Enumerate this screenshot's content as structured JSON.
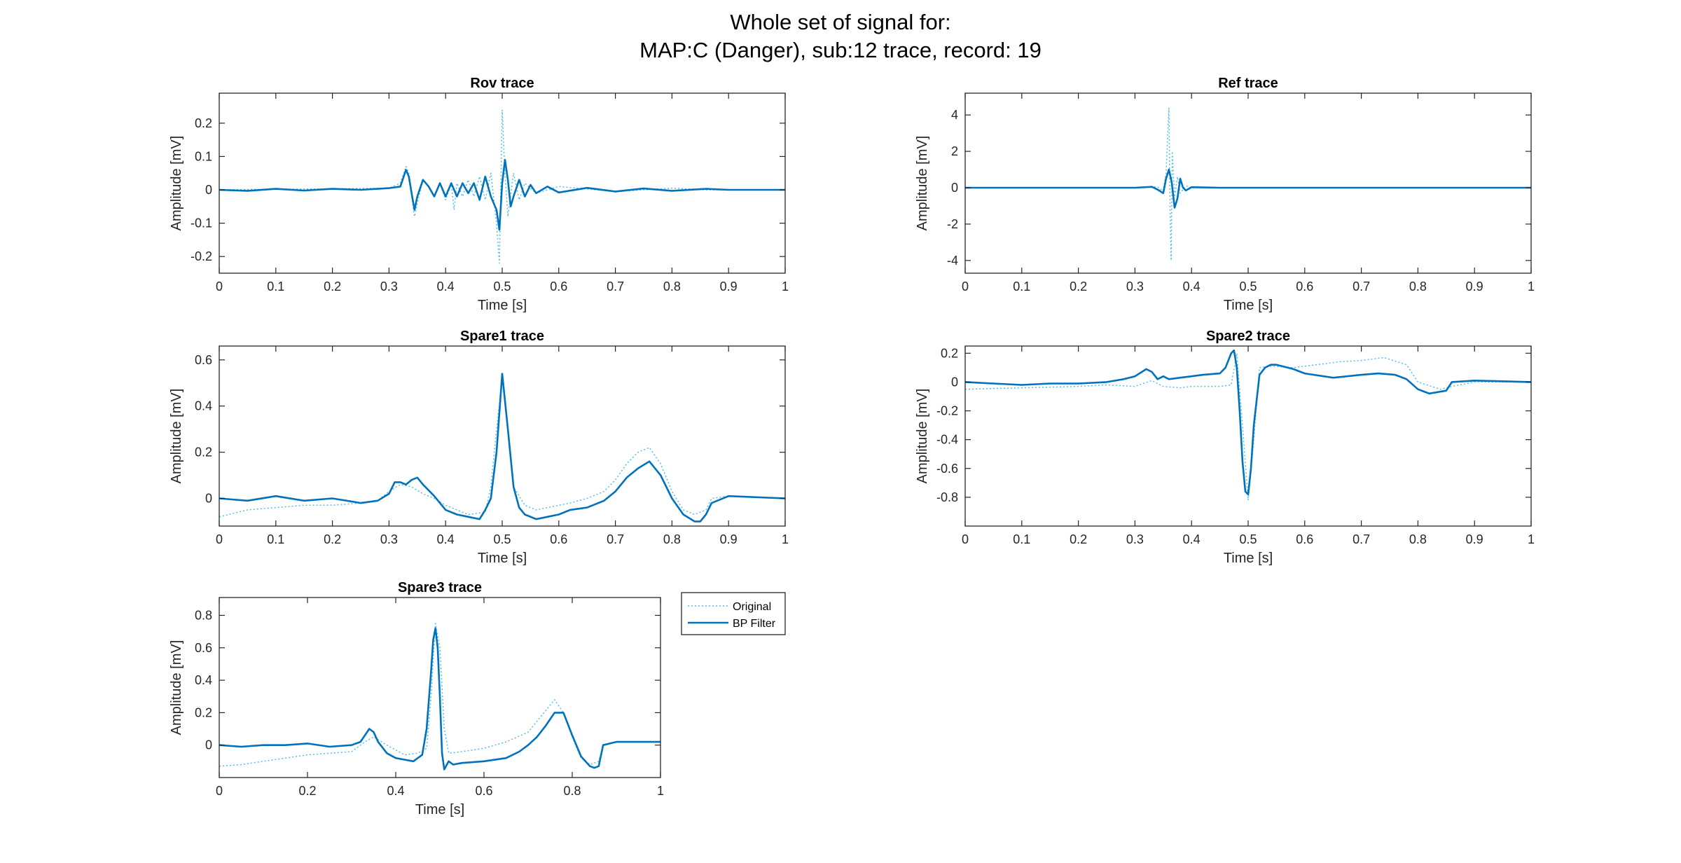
{
  "figure": {
    "title_line1": "Whole set of signal for:",
    "title_line2": "MAP:C (Danger), sub:12 trace, record: 19",
    "colors": {
      "original": "#4DBEEE",
      "filtered": "#0072BD",
      "axis": "#262626",
      "background": "#ffffff"
    }
  },
  "legend": {
    "entries": [
      {
        "label": "Original",
        "style": "dotted",
        "color": "#4DBEEE"
      },
      {
        "label": "BP Filter",
        "style": "solid",
        "color": "#0072BD"
      }
    ]
  },
  "chart_data": [
    {
      "type": "line",
      "title": "Rov trace",
      "xlabel": "Time [s]",
      "ylabel": "Amplitude [mV]",
      "xlim": [
        0,
        1
      ],
      "ylim": [
        -0.25,
        0.29
      ],
      "xticks": [
        0,
        0.1,
        0.2,
        0.3,
        0.4,
        0.5,
        0.6,
        0.7,
        0.8,
        0.9,
        1
      ],
      "xtick_labels": [
        "0",
        "0.1",
        "0.2",
        "0.3",
        "0.4",
        "0.5",
        "0.6",
        "0.7",
        "0.8",
        "0.9",
        "1"
      ],
      "yticks": [
        -0.2,
        -0.1,
        0,
        0.1,
        0.2
      ],
      "ytick_labels": [
        "-0.2",
        "-0.1",
        "0",
        "0.1",
        "0.2"
      ],
      "series": [
        {
          "name": "Original",
          "x": [
            0,
            0.1,
            0.2,
            0.3,
            0.32,
            0.33,
            0.335,
            0.34,
            0.345,
            0.35,
            0.36,
            0.37,
            0.38,
            0.39,
            0.4,
            0.41,
            0.415,
            0.42,
            0.43,
            0.44,
            0.45,
            0.46,
            0.47,
            0.48,
            0.49,
            0.495,
            0.5,
            0.505,
            0.51,
            0.52,
            0.53,
            0.54,
            0.56,
            0.6,
            0.7,
            0.8,
            0.86,
            1
          ],
          "y": [
            0,
            0.002,
            0.003,
            0.005,
            0.02,
            0.07,
            0.05,
            -0.02,
            -0.08,
            -0.04,
            0.03,
            0.01,
            -0.02,
            0.02,
            -0.03,
            0.02,
            -0.06,
            0.02,
            -0.02,
            0.03,
            -0.02,
            0.04,
            -0.03,
            0.05,
            -0.1,
            -0.22,
            0.24,
            0.05,
            -0.08,
            0.05,
            -0.03,
            0.02,
            -0.01,
            0.01,
            -0.005,
            0.005,
            0,
            0
          ]
        },
        {
          "name": "BP Filter",
          "x": [
            0,
            0.05,
            0.1,
            0.15,
            0.2,
            0.25,
            0.3,
            0.32,
            0.33,
            0.335,
            0.34,
            0.345,
            0.35,
            0.36,
            0.37,
            0.38,
            0.39,
            0.4,
            0.41,
            0.42,
            0.43,
            0.44,
            0.45,
            0.46,
            0.47,
            0.48,
            0.49,
            0.495,
            0.5,
            0.505,
            0.51,
            0.515,
            0.52,
            0.53,
            0.54,
            0.55,
            0.56,
            0.58,
            0.6,
            0.65,
            0.7,
            0.75,
            0.8,
            0.86,
            0.9,
            1
          ],
          "y": [
            0,
            -0.003,
            0.003,
            -0.002,
            0.003,
            0,
            0.005,
            0.01,
            0.06,
            0.04,
            -0.01,
            -0.06,
            -0.02,
            0.03,
            0.01,
            -0.02,
            0.02,
            -0.02,
            0.02,
            -0.02,
            0.02,
            -0.01,
            0.02,
            -0.03,
            0.04,
            -0.02,
            -0.06,
            -0.12,
            0.02,
            0.09,
            0.03,
            -0.05,
            -0.02,
            0.03,
            -0.02,
            0.015,
            -0.01,
            0.01,
            -0.008,
            0.006,
            -0.005,
            0.004,
            -0.003,
            0.003,
            0,
            0
          ]
        }
      ]
    },
    {
      "type": "line",
      "title": "Ref trace",
      "xlabel": "Time [s]",
      "ylabel": "Amplitude [mV]",
      "xlim": [
        0,
        1
      ],
      "ylim": [
        -4.7,
        5.2
      ],
      "xticks": [
        0,
        0.1,
        0.2,
        0.3,
        0.4,
        0.5,
        0.6,
        0.7,
        0.8,
        0.9,
        1
      ],
      "xtick_labels": [
        "0",
        "0.1",
        "0.2",
        "0.3",
        "0.4",
        "0.5",
        "0.6",
        "0.7",
        "0.8",
        "0.9",
        "1"
      ],
      "yticks": [
        -4,
        -2,
        0,
        2,
        4
      ],
      "ytick_labels": [
        "-4",
        "-2",
        "0",
        "2",
        "4"
      ],
      "series": [
        {
          "name": "Original",
          "x": [
            0,
            0.3,
            0.34,
            0.35,
            0.355,
            0.36,
            0.362,
            0.364,
            0.366,
            0.37,
            0.375,
            0.38,
            0.39,
            0.4,
            0.5,
            1
          ],
          "y": [
            0,
            0,
            0.05,
            -0.2,
            0.8,
            4.4,
            -1.0,
            -4.0,
            2.0,
            -0.5,
            0.6,
            -0.3,
            0.1,
            0,
            0,
            0
          ]
        },
        {
          "name": "BP Filter",
          "x": [
            0,
            0.3,
            0.33,
            0.34,
            0.35,
            0.355,
            0.36,
            0.365,
            0.37,
            0.375,
            0.38,
            0.385,
            0.39,
            0.4,
            0.45,
            0.5,
            1
          ],
          "y": [
            0,
            0,
            0.05,
            -0.1,
            -0.3,
            0.5,
            1.0,
            0.3,
            -1.1,
            -0.6,
            0.5,
            0.0,
            -0.15,
            0.03,
            0,
            0,
            0
          ]
        }
      ]
    },
    {
      "type": "line",
      "title": "Spare1 trace",
      "xlabel": "Time [s]",
      "ylabel": "Amplitude [mV]",
      "xlim": [
        0,
        1
      ],
      "ylim": [
        -0.12,
        0.66
      ],
      "xticks": [
        0,
        0.1,
        0.2,
        0.3,
        0.4,
        0.5,
        0.6,
        0.7,
        0.8,
        0.9,
        1
      ],
      "xtick_labels": [
        "0",
        "0.1",
        "0.2",
        "0.3",
        "0.4",
        "0.5",
        "0.6",
        "0.7",
        "0.8",
        "0.9",
        "1"
      ],
      "yticks": [
        0,
        0.2,
        0.4,
        0.6
      ],
      "ytick_labels": [
        "0",
        "0.2",
        "0.4",
        "0.6"
      ],
      "series": [
        {
          "name": "Original",
          "x": [
            0,
            0.05,
            0.1,
            0.15,
            0.2,
            0.25,
            0.28,
            0.3,
            0.32,
            0.34,
            0.36,
            0.38,
            0.4,
            0.44,
            0.47,
            0.48,
            0.49,
            0.5,
            0.51,
            0.52,
            0.54,
            0.56,
            0.58,
            0.6,
            0.62,
            0.65,
            0.68,
            0.7,
            0.72,
            0.74,
            0.76,
            0.78,
            0.8,
            0.82,
            0.84,
            0.86,
            0.87,
            0.9,
            1
          ],
          "y": [
            -0.08,
            -0.05,
            -0.04,
            -0.03,
            -0.03,
            -0.02,
            -0.01,
            0.03,
            0.06,
            0.05,
            0.02,
            0,
            -0.03,
            -0.07,
            -0.06,
            0.05,
            0.3,
            0.52,
            0.3,
            0.05,
            -0.03,
            -0.05,
            -0.04,
            -0.03,
            -0.02,
            0,
            0.03,
            0.08,
            0.15,
            0.2,
            0.22,
            0.15,
            0.03,
            -0.05,
            -0.07,
            -0.05,
            0,
            0.01,
            0
          ]
        },
        {
          "name": "BP Filter",
          "x": [
            0,
            0.05,
            0.1,
            0.15,
            0.2,
            0.25,
            0.28,
            0.3,
            0.31,
            0.32,
            0.33,
            0.34,
            0.35,
            0.36,
            0.38,
            0.4,
            0.42,
            0.44,
            0.46,
            0.47,
            0.48,
            0.49,
            0.5,
            0.51,
            0.52,
            0.53,
            0.54,
            0.56,
            0.58,
            0.6,
            0.62,
            0.65,
            0.68,
            0.7,
            0.72,
            0.74,
            0.76,
            0.78,
            0.8,
            0.82,
            0.84,
            0.85,
            0.86,
            0.87,
            0.9,
            1
          ],
          "y": [
            0,
            -0.01,
            0.01,
            -0.01,
            0,
            -0.02,
            -0.01,
            0.02,
            0.07,
            0.07,
            0.06,
            0.08,
            0.09,
            0.06,
            0.01,
            -0.05,
            -0.07,
            -0.08,
            -0.09,
            -0.05,
            0,
            0.2,
            0.54,
            0.3,
            0.05,
            -0.04,
            -0.07,
            -0.09,
            -0.08,
            -0.07,
            -0.05,
            -0.04,
            -0.01,
            0.03,
            0.09,
            0.13,
            0.16,
            0.1,
            0,
            -0.07,
            -0.1,
            -0.1,
            -0.07,
            -0.02,
            0.01,
            0
          ]
        }
      ]
    },
    {
      "type": "line",
      "title": "Spare2 trace",
      "xlabel": "Time [s]",
      "ylabel": "Amplitude [mV]",
      "xlim": [
        0,
        1
      ],
      "ylim": [
        -1.0,
        0.25
      ],
      "xticks": [
        0,
        0.1,
        0.2,
        0.3,
        0.4,
        0.5,
        0.6,
        0.7,
        0.8,
        0.9,
        1
      ],
      "xtick_labels": [
        "0",
        "0.1",
        "0.2",
        "0.3",
        "0.4",
        "0.5",
        "0.6",
        "0.7",
        "0.8",
        "0.9",
        "1"
      ],
      "yticks": [
        -0.8,
        -0.6,
        -0.4,
        -0.2,
        0,
        0.2
      ],
      "ytick_labels": [
        "-0.8",
        "-0.6",
        "-0.4",
        "-0.2",
        "0",
        "0.2"
      ],
      "series": [
        {
          "name": "Original",
          "x": [
            0,
            0.1,
            0.2,
            0.25,
            0.3,
            0.33,
            0.35,
            0.38,
            0.4,
            0.45,
            0.47,
            0.48,
            0.49,
            0.5,
            0.51,
            0.52,
            0.54,
            0.58,
            0.62,
            0.66,
            0.7,
            0.74,
            0.78,
            0.8,
            0.84,
            0.86,
            0.9,
            1
          ],
          "y": [
            -0.05,
            -0.04,
            -0.03,
            -0.02,
            -0.03,
            0.01,
            -0.03,
            -0.04,
            -0.03,
            -0.03,
            -0.02,
            0.2,
            -0.3,
            -0.82,
            -0.4,
            0.1,
            0.11,
            0.1,
            0.12,
            0.14,
            0.15,
            0.17,
            0.12,
            0,
            -0.05,
            -0.03,
            0,
            0
          ]
        },
        {
          "name": "BP Filter",
          "x": [
            0,
            0.05,
            0.1,
            0.15,
            0.2,
            0.25,
            0.28,
            0.3,
            0.32,
            0.33,
            0.34,
            0.35,
            0.36,
            0.38,
            0.4,
            0.42,
            0.45,
            0.46,
            0.47,
            0.475,
            0.48,
            0.485,
            0.49,
            0.495,
            0.5,
            0.505,
            0.51,
            0.52,
            0.53,
            0.54,
            0.55,
            0.56,
            0.58,
            0.6,
            0.65,
            0.7,
            0.73,
            0.76,
            0.78,
            0.8,
            0.82,
            0.85,
            0.86,
            0.9,
            1
          ],
          "y": [
            0,
            -0.01,
            -0.02,
            -0.01,
            -0.01,
            0,
            0.02,
            0.04,
            0.09,
            0.07,
            0.02,
            0.04,
            0.02,
            0.03,
            0.04,
            0.05,
            0.06,
            0.1,
            0.2,
            0.22,
            0.1,
            -0.2,
            -0.55,
            -0.76,
            -0.78,
            -0.6,
            -0.3,
            0.05,
            0.1,
            0.12,
            0.12,
            0.11,
            0.09,
            0.06,
            0.03,
            0.05,
            0.06,
            0.05,
            0.02,
            -0.05,
            -0.08,
            -0.06,
            0,
            0.01,
            0
          ]
        }
      ]
    },
    {
      "type": "line",
      "title": "Spare3 trace",
      "xlabel": "Time [s]",
      "ylabel": "Amplitude [mV]",
      "xlim": [
        0,
        1
      ],
      "ylim": [
        -0.2,
        0.91
      ],
      "xticks": [
        0,
        0.2,
        0.4,
        0.6,
        0.8,
        1
      ],
      "xtick_labels": [
        "0",
        "0.2",
        "0.4",
        "0.6",
        "0.8",
        "1"
      ],
      "yticks": [
        0,
        0.2,
        0.4,
        0.6,
        0.8
      ],
      "ytick_labels": [
        "0",
        "0.2",
        "0.4",
        "0.6",
        "0.8"
      ],
      "series": [
        {
          "name": "Original",
          "x": [
            0,
            0.05,
            0.1,
            0.15,
            0.2,
            0.25,
            0.3,
            0.33,
            0.35,
            0.38,
            0.42,
            0.45,
            0.47,
            0.48,
            0.49,
            0.5,
            0.51,
            0.52,
            0.55,
            0.6,
            0.65,
            0.7,
            0.73,
            0.76,
            0.78,
            0.8,
            0.82,
            0.84,
            0.86,
            0.87,
            0.9,
            1
          ],
          "y": [
            -0.13,
            -0.12,
            -0.1,
            -0.08,
            -0.06,
            -0.05,
            -0.04,
            0.02,
            0.05,
            0,
            -0.06,
            -0.05,
            -0.02,
            0.3,
            0.75,
            0.6,
            0.1,
            -0.05,
            -0.04,
            -0.02,
            0.02,
            0.08,
            0.18,
            0.28,
            0.2,
            0.05,
            -0.08,
            -0.12,
            -0.1,
            0,
            0.02,
            0.02
          ]
        },
        {
          "name": "BP Filter",
          "x": [
            0,
            0.05,
            0.1,
            0.15,
            0.2,
            0.25,
            0.3,
            0.32,
            0.34,
            0.35,
            0.36,
            0.38,
            0.4,
            0.42,
            0.44,
            0.46,
            0.47,
            0.48,
            0.485,
            0.49,
            0.495,
            0.5,
            0.505,
            0.51,
            0.52,
            0.53,
            0.55,
            0.6,
            0.65,
            0.68,
            0.7,
            0.72,
            0.74,
            0.76,
            0.78,
            0.8,
            0.82,
            0.84,
            0.85,
            0.86,
            0.87,
            0.9,
            1
          ],
          "y": [
            0,
            -0.01,
            0,
            0,
            0.01,
            -0.01,
            0,
            0.02,
            0.1,
            0.08,
            0.02,
            -0.05,
            -0.08,
            -0.09,
            -0.1,
            -0.06,
            0.1,
            0.45,
            0.65,
            0.72,
            0.6,
            0.3,
            -0.05,
            -0.15,
            -0.1,
            -0.12,
            -0.11,
            -0.1,
            -0.08,
            -0.04,
            0,
            0.05,
            0.12,
            0.2,
            0.2,
            0.06,
            -0.07,
            -0.13,
            -0.14,
            -0.13,
            0,
            0.02,
            0.02
          ]
        }
      ]
    }
  ]
}
